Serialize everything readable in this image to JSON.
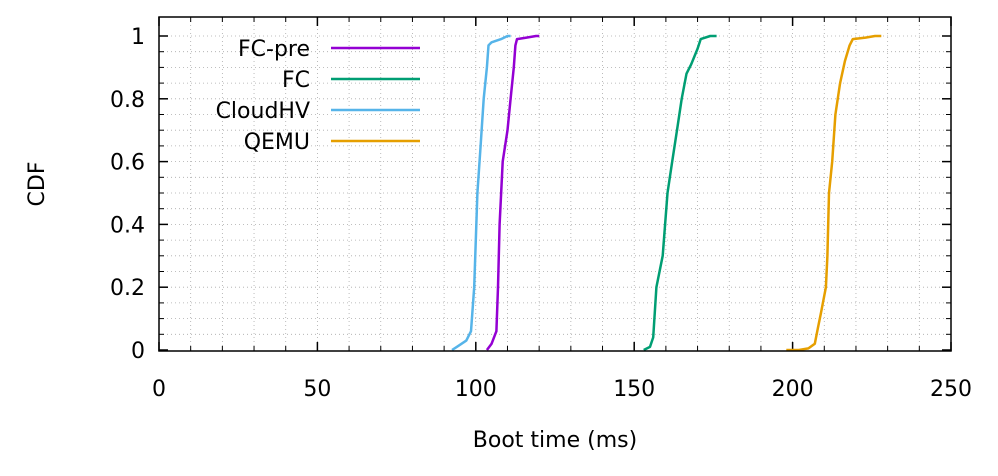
{
  "chart_data": {
    "type": "line",
    "title": "",
    "xlabel": "Boot time (ms)",
    "ylabel": "CDF",
    "xlim": [
      0,
      250
    ],
    "ylim": [
      0,
      1.05
    ],
    "xticks": [
      "0",
      "50",
      "100",
      "150",
      "200",
      "250"
    ],
    "yticks": [
      "0",
      "0.2",
      "0.4",
      "0.6",
      "0.8",
      "1"
    ],
    "grid": true,
    "legend_position": "top-left",
    "series": [
      {
        "name": "FC-pre",
        "color": "#9400d3",
        "points": [
          [
            103.5,
            0.0
          ],
          [
            105,
            0.02
          ],
          [
            106.5,
            0.06
          ],
          [
            107,
            0.2
          ],
          [
            107.5,
            0.4
          ],
          [
            108.5,
            0.6
          ],
          [
            110,
            0.7
          ],
          [
            111,
            0.8
          ],
          [
            112,
            0.9
          ],
          [
            112.5,
            0.97
          ],
          [
            113,
            0.99
          ],
          [
            116,
            0.995
          ],
          [
            119,
            1.0
          ],
          [
            120,
            1.0
          ]
        ]
      },
      {
        "name": "FC",
        "color": "#009e73",
        "points": [
          [
            153,
            0.0
          ],
          [
            155,
            0.01
          ],
          [
            156,
            0.04
          ],
          [
            157,
            0.2
          ],
          [
            159,
            0.3
          ],
          [
            160.5,
            0.5
          ],
          [
            162,
            0.6
          ],
          [
            163.5,
            0.7
          ],
          [
            165,
            0.8
          ],
          [
            166.5,
            0.88
          ],
          [
            168,
            0.91
          ],
          [
            170,
            0.96
          ],
          [
            171,
            0.99
          ],
          [
            174,
            1.0
          ],
          [
            176,
            1.0
          ]
        ]
      },
      {
        "name": "CloudHV",
        "color": "#56b4e9",
        "points": [
          [
            92.5,
            0.0
          ],
          [
            94,
            0.01
          ],
          [
            97,
            0.03
          ],
          [
            98.5,
            0.06
          ],
          [
            99.5,
            0.2
          ],
          [
            100.5,
            0.5
          ],
          [
            101.5,
            0.65
          ],
          [
            102.5,
            0.8
          ],
          [
            103.5,
            0.9
          ],
          [
            104,
            0.97
          ],
          [
            105,
            0.98
          ],
          [
            108,
            0.99
          ],
          [
            110,
            1.0
          ],
          [
            111,
            1.0
          ]
        ]
      },
      {
        "name": "QEMU",
        "color": "#e69f00",
        "points": [
          [
            198,
            0.0
          ],
          [
            202,
            0.0
          ],
          [
            205,
            0.005
          ],
          [
            207,
            0.02
          ],
          [
            208,
            0.07
          ],
          [
            209,
            0.12
          ],
          [
            210.5,
            0.2
          ],
          [
            211,
            0.3
          ],
          [
            211.5,
            0.5
          ],
          [
            212.5,
            0.6
          ],
          [
            213.5,
            0.75
          ],
          [
            215,
            0.85
          ],
          [
            216.5,
            0.92
          ],
          [
            218,
            0.97
          ],
          [
            219,
            0.99
          ],
          [
            223,
            0.995
          ],
          [
            226,
            1.0
          ],
          [
            228,
            1.0
          ]
        ]
      }
    ]
  }
}
